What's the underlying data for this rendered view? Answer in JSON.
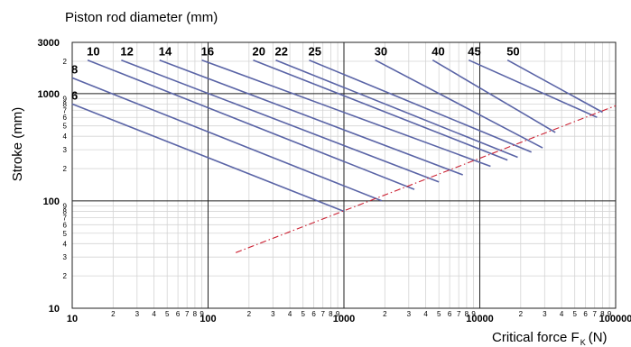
{
  "chart_data": {
    "type": "line",
    "title": "Piston rod diameter (mm)",
    "xlabel": "Critical force F",
    "xlabel_subscript": "K",
    "xlabel_unit": "(N)",
    "ylabel": "Stroke (mm)",
    "x_scale": "log",
    "y_scale": "log",
    "xlim": [
      10,
      100000
    ],
    "ylim": [
      10,
      3000
    ],
    "grid": true,
    "x_major_ticks": [
      {
        "value": 10,
        "label": "10"
      },
      {
        "value": 100,
        "label": "100"
      },
      {
        "value": 1000,
        "label": "1000"
      },
      {
        "value": 10000,
        "label": "10000"
      },
      {
        "value": 100000,
        "label": "100000"
      }
    ],
    "x_minor_tick_labels": [
      "2",
      "3",
      "4",
      "5",
      "6",
      "7",
      "8",
      "9"
    ],
    "y_major_ticks": [
      {
        "value": 10,
        "label": "10"
      },
      {
        "value": 100,
        "label": "100"
      },
      {
        "value": 1000,
        "label": "1000"
      },
      {
        "value": 3000,
        "label": "3000"
      }
    ],
    "y_minor_ticks": [
      {
        "value": 20,
        "label": "2"
      },
      {
        "value": 30,
        "label": "3"
      },
      {
        "value": 40,
        "label": "4"
      },
      {
        "value": 50,
        "label": "5"
      },
      {
        "value": 60,
        "label": "6"
      },
      {
        "value": 70,
        "label": "7"
      },
      {
        "value": 80,
        "label": "8"
      },
      {
        "value": 90,
        "label": "9"
      },
      {
        "value": 200,
        "label": "2"
      },
      {
        "value": 300,
        "label": "3"
      },
      {
        "value": 400,
        "label": "4"
      },
      {
        "value": 500,
        "label": "5"
      },
      {
        "value": 600,
        "label": "6"
      },
      {
        "value": 700,
        "label": "7"
      },
      {
        "value": 800,
        "label": "8"
      },
      {
        "value": 900,
        "label": "9"
      },
      {
        "value": 2000,
        "label": "2"
      }
    ],
    "series": [
      {
        "name": "6",
        "x": [
          10,
          1000
        ],
        "y": [
          800,
          80
        ]
      },
      {
        "name": "8",
        "x": [
          10,
          1900
        ],
        "y": [
          1400,
          100
        ]
      },
      {
        "name": "10",
        "x": [
          13,
          3300
        ],
        "y": [
          2050,
          128
        ]
      },
      {
        "name": "12",
        "x": [
          23,
          5000
        ],
        "y": [
          2050,
          150
        ]
      },
      {
        "name": "14",
        "x": [
          44,
          7500
        ],
        "y": [
          2050,
          175
        ]
      },
      {
        "name": "16",
        "x": [
          90,
          12000
        ],
        "y": [
          2050,
          210
        ]
      },
      {
        "name": "20",
        "x": [
          215,
          16000
        ],
        "y": [
          2050,
          240
        ]
      },
      {
        "name": "22",
        "x": [
          315,
          19000
        ],
        "y": [
          2050,
          255
        ]
      },
      {
        "name": "25",
        "x": [
          555,
          24000
        ],
        "y": [
          2050,
          285
        ]
      },
      {
        "name": "30",
        "x": [
          1700,
          29000
        ],
        "y": [
          2050,
          312
        ]
      },
      {
        "name": "40",
        "x": [
          4500,
          36000
        ],
        "y": [
          2050,
          435
        ]
      },
      {
        "name": "45",
        "x": [
          8300,
          73000
        ],
        "y": [
          2050,
          600
        ]
      },
      {
        "name": "50",
        "x": [
          16000,
          80000
        ],
        "y": [
          2050,
          670
        ]
      }
    ],
    "limit_line": {
      "style": "dash-dot",
      "color": "#cc2233",
      "x": [
        160,
        100000
      ],
      "y": [
        33,
        770
      ]
    },
    "colors": {
      "series": "#5a64a6",
      "limit": "#cc2233",
      "grid_major": "#222222",
      "grid_minor": "#d4d4d4"
    }
  }
}
